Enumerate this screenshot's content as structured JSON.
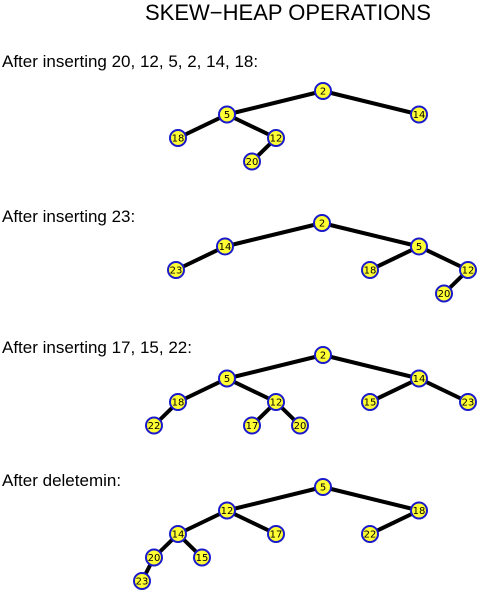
{
  "title": "SKEW−HEAP OPERATIONS",
  "colors": {
    "node_fill": "#ffff33",
    "node_stroke": "#1a1acc",
    "edge": "#000000"
  },
  "panels": [
    {
      "caption": "After inserting 20, 12, 5, 2, 14, 18:",
      "tree": {
        "key": "2",
        "children": [
          {
            "key": "5",
            "children": [
              {
                "key": "18",
                "children": []
              },
              {
                "key": "12",
                "children": [
                  {
                    "key": "20",
                    "children": []
                  }
                ]
              }
            ]
          },
          {
            "key": "14",
            "children": []
          }
        ]
      }
    },
    {
      "caption": "After inserting 23:",
      "tree": {
        "key": "2",
        "children": [
          {
            "key": "14",
            "children": [
              {
                "key": "23",
                "children": []
              }
            ]
          },
          {
            "key": "5",
            "children": [
              {
                "key": "18",
                "children": []
              },
              {
                "key": "12",
                "children": [
                  {
                    "key": "20",
                    "children": []
                  }
                ]
              }
            ]
          }
        ]
      }
    },
    {
      "caption": "After inserting 17, 15, 22:",
      "tree": {
        "key": "2",
        "children": [
          {
            "key": "5",
            "children": [
              {
                "key": "18",
                "children": [
                  {
                    "key": "22",
                    "children": []
                  }
                ]
              },
              {
                "key": "12",
                "children": [
                  {
                    "key": "17",
                    "children": []
                  },
                  {
                    "key": "20",
                    "children": []
                  }
                ]
              }
            ]
          },
          {
            "key": "14",
            "children": [
              {
                "key": "15",
                "children": []
              },
              {
                "key": "23",
                "children": []
              }
            ]
          }
        ]
      }
    },
    {
      "caption": "After deletemin:",
      "tree": {
        "key": "5",
        "children": [
          {
            "key": "12",
            "children": [
              {
                "key": "14",
                "children": [
                  {
                    "key": "20",
                    "children": [
                      {
                        "key": "23",
                        "children": []
                      }
                    ]
                  },
                  {
                    "key": "15",
                    "children": []
                  }
                ]
              },
              {
                "key": "17",
                "children": []
              }
            ]
          },
          {
            "key": "18",
            "children": [
              {
                "key": "22",
                "children": []
              }
            ]
          }
        ]
      }
    }
  ]
}
